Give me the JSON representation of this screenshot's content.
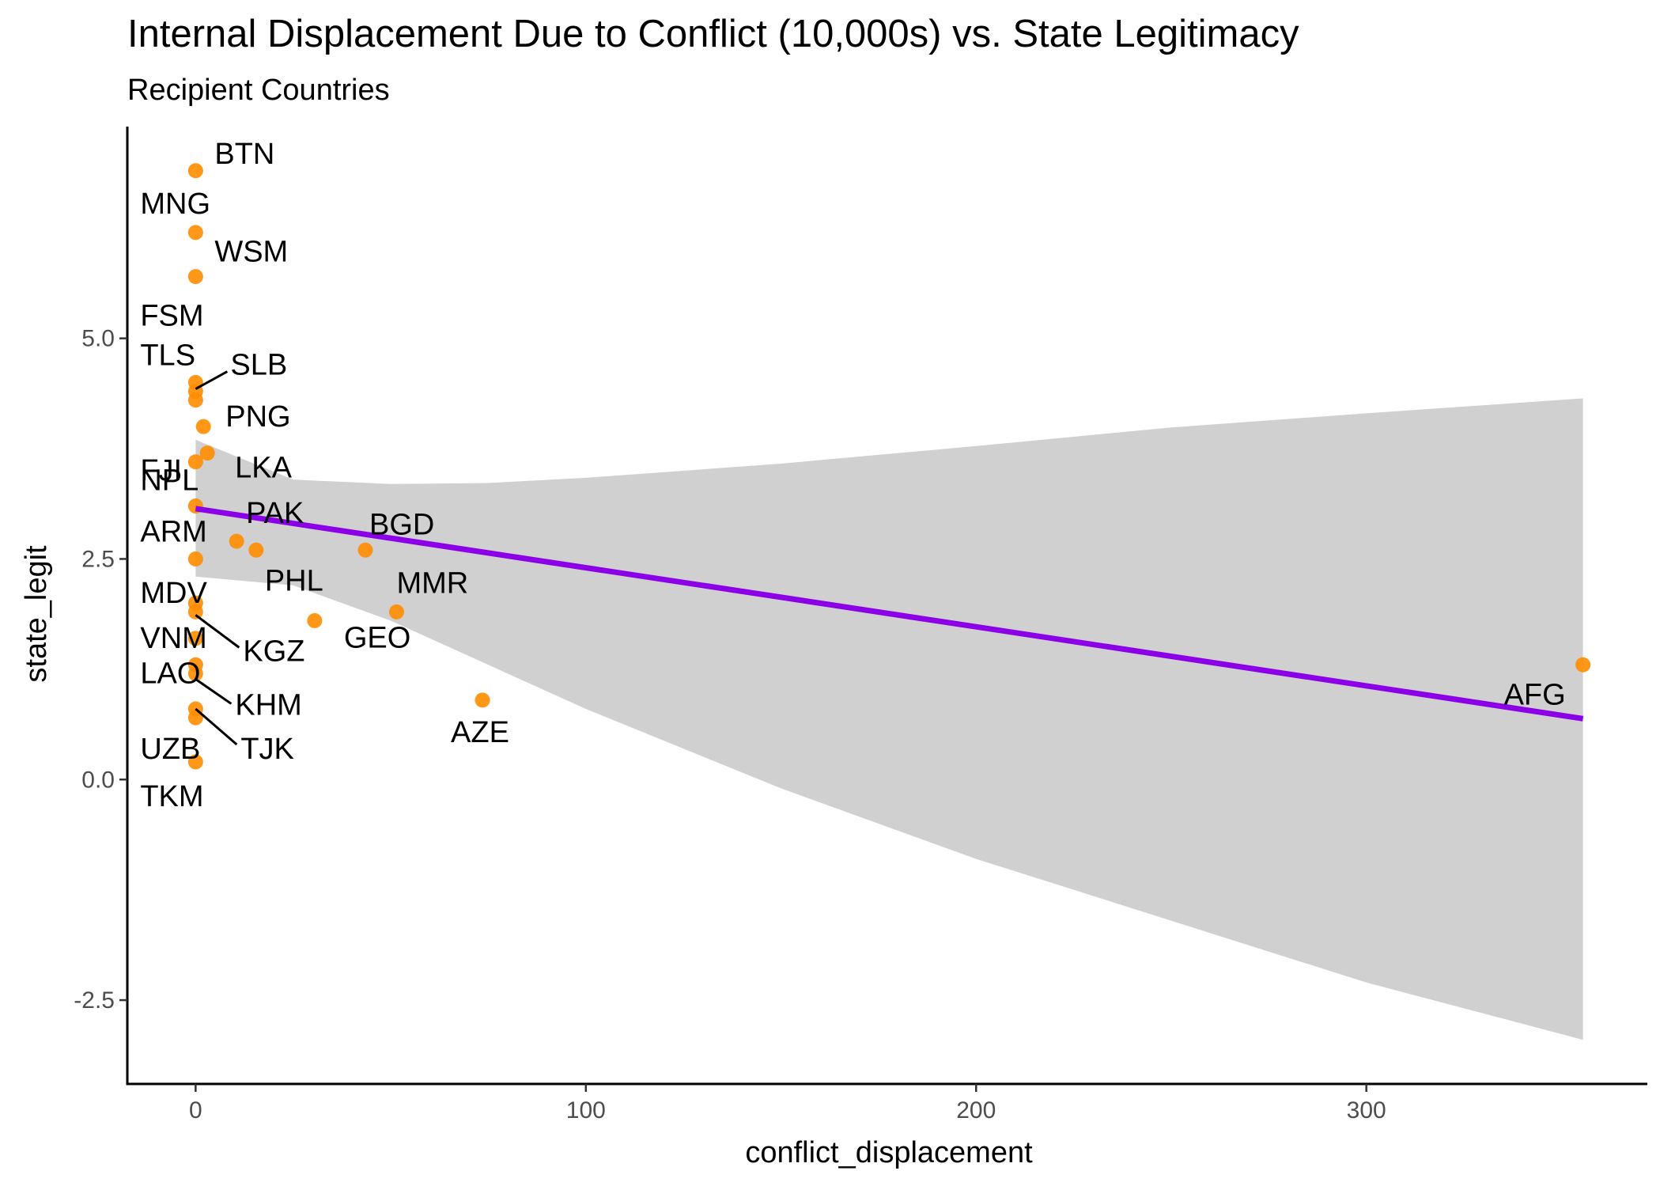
{
  "chart_data": {
    "type": "scatter",
    "title": "Internal Displacement Due to Conflict (10,000s) vs. State Legitimacy",
    "subtitle": "Recipient Countries",
    "xlabel": "conflict_displacement",
    "ylabel": "state_legit",
    "xlim": [
      -17.5,
      372
    ],
    "ylim": [
      -3.45,
      7.4
    ],
    "x_ticks": [
      0,
      100,
      200,
      300
    ],
    "x_tick_labels": [
      "0",
      "100",
      "200",
      "300"
    ],
    "y_ticks": [
      -2.5,
      0,
      2.5,
      5
    ],
    "y_tick_labels": [
      "-2.5",
      "0.0",
      "2.5",
      "5.0"
    ],
    "grid": false,
    "legend": "none",
    "point_color": "#FF8C00",
    "fit_color": "#8B00E6",
    "band_color": "#BEBEBE",
    "points": [
      {
        "label": "BTN",
        "x": 0,
        "y": 6.9
      },
      {
        "label": "MNG",
        "x": 0,
        "y": 6.2
      },
      {
        "label": "WSM",
        "x": 0,
        "y": 5.7
      },
      {
        "label": "FSM",
        "x": 0,
        "y": 4.5
      },
      {
        "label": "TLS",
        "x": 0,
        "y": 4.3
      },
      {
        "label": "SLB",
        "x": 0,
        "y": 4.4
      },
      {
        "label": "PNG",
        "x": 2,
        "y": 4.0
      },
      {
        "label": "FJI",
        "x": 0,
        "y": 3.6
      },
      {
        "label": "LKA",
        "x": 3,
        "y": 3.7
      },
      {
        "label": "NPL",
        "x": 0,
        "y": 3.1
      },
      {
        "label": "ARM",
        "x": 0,
        "y": 2.5
      },
      {
        "label": "PAK",
        "x": 10.5,
        "y": 2.7
      },
      {
        "label": "PHL",
        "x": 15.5,
        "y": 2.6
      },
      {
        "label": "BGD",
        "x": 43.5,
        "y": 2.6
      },
      {
        "label": "MDV",
        "x": 0,
        "y": 2.0
      },
      {
        "label": "MMR",
        "x": 51.5,
        "y": 1.9
      },
      {
        "label": "GEO",
        "x": 30.5,
        "y": 1.8
      },
      {
        "label": "VNM",
        "x": 0,
        "y": 1.6
      },
      {
        "label": "KGZ",
        "x": 0,
        "y": 1.9
      },
      {
        "label": "LAO",
        "x": 0,
        "y": 1.3
      },
      {
        "label": "KHM",
        "x": 0,
        "y": 1.2
      },
      {
        "label": "TJK",
        "x": 0,
        "y": 0.8
      },
      {
        "label": "UZB",
        "x": 0,
        "y": 0.7
      },
      {
        "label": "TKM",
        "x": 0,
        "y": 0.2
      },
      {
        "label": "AZE",
        "x": 73.5,
        "y": 0.9
      },
      {
        "label": "AFG",
        "x": 355.5,
        "y": 1.3
      }
    ],
    "fit_line": {
      "x": [
        0,
        355.5
      ],
      "y": [
        3.07,
        0.69
      ]
    },
    "confidence_band": {
      "x": [
        0,
        25,
        50,
        75,
        100,
        150,
        200,
        250,
        300,
        355.5
      ],
      "upper": [
        3.85,
        3.4,
        3.35,
        3.36,
        3.42,
        3.58,
        3.78,
        3.99,
        4.15,
        4.32
      ],
      "lower": [
        2.3,
        2.2,
        1.8,
        1.3,
        0.8,
        -0.1,
        -0.9,
        -1.6,
        -2.3,
        -2.95
      ]
    }
  }
}
